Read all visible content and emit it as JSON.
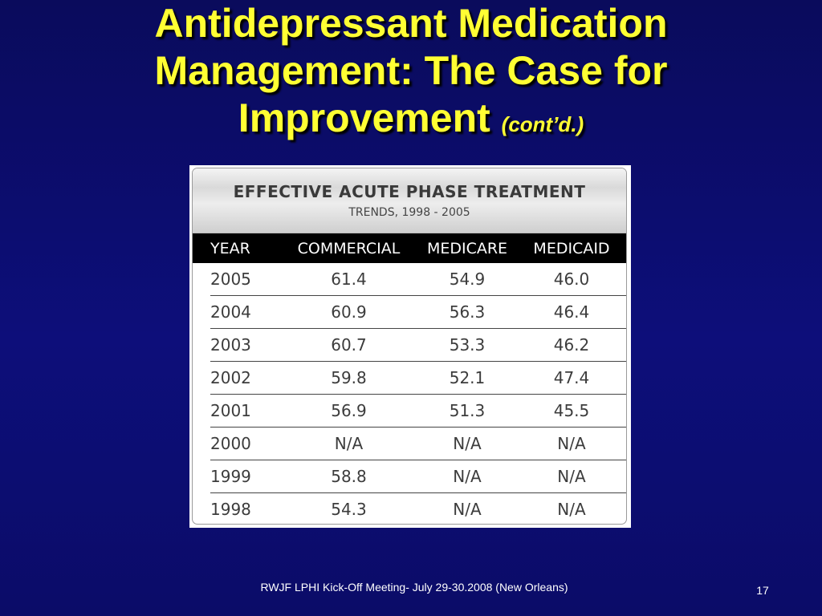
{
  "slide": {
    "title_line1": "Antidepressant Medication",
    "title_line2": "Management: The Case for",
    "title_line3": "Improvement",
    "title_suffix": "(cont’d.)"
  },
  "table": {
    "title": "EFFECTIVE ACUTE PHASE TREATMENT",
    "subtitle": "TRENDS, 1998 - 2005",
    "columns": [
      "YEAR",
      "COMMERCIAL",
      "MEDICARE",
      "MEDICAID"
    ],
    "rows": [
      [
        "2005",
        "61.4",
        "54.9",
        "46.0"
      ],
      [
        "2004",
        "60.9",
        "56.3",
        "46.4"
      ],
      [
        "2003",
        "60.7",
        "53.3",
        "46.2"
      ],
      [
        "2002",
        "59.8",
        "52.1",
        "47.4"
      ],
      [
        "2001",
        "56.9",
        "51.3",
        "45.5"
      ],
      [
        "2000",
        "N/A",
        "N/A",
        "N/A"
      ],
      [
        "1999",
        "58.8",
        "N/A",
        "N/A"
      ],
      [
        "1998",
        "54.3",
        "N/A",
        "N/A"
      ]
    ]
  },
  "footer": {
    "text": "RWJF LPHI Kick-Off Meeting- July 29-30.2008 (New Orleans)",
    "page_number": "17"
  }
}
